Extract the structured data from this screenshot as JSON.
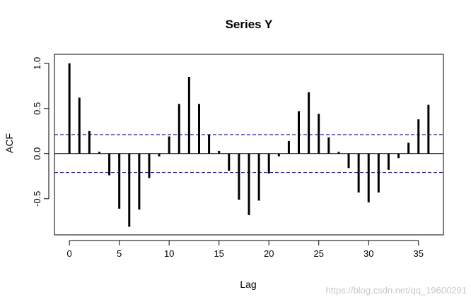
{
  "chart_data": {
    "type": "bar",
    "title": "Series  Y",
    "xlabel": "Lag",
    "ylabel": "ACF",
    "xlim": [
      -1.5,
      37.5
    ],
    "ylim": [
      -0.9,
      1.1
    ],
    "x_ticks": [
      0,
      5,
      10,
      15,
      20,
      25,
      30,
      35
    ],
    "x_tick_labels": [
      "0",
      "5",
      "10",
      "15",
      "20",
      "25",
      "30",
      "35"
    ],
    "y_ticks": [
      -0.5,
      0.0,
      0.5,
      1.0
    ],
    "y_tick_labels": [
      "-0.5",
      "0.0",
      "0.5",
      "1.0"
    ],
    "confidence_bounds": [
      0.21,
      -0.21
    ],
    "confidence_color": "#0000cc",
    "bar_color": "#000000",
    "x": [
      0,
      1,
      2,
      3,
      4,
      5,
      6,
      7,
      8,
      9,
      10,
      11,
      12,
      13,
      14,
      15,
      16,
      17,
      18,
      19,
      20,
      21,
      22,
      23,
      24,
      25,
      26,
      27,
      28,
      29,
      30,
      31,
      32,
      33,
      34,
      35,
      36
    ],
    "values": [
      1.0,
      0.62,
      0.25,
      0.02,
      -0.24,
      -0.61,
      -0.81,
      -0.62,
      -0.27,
      -0.03,
      0.19,
      0.55,
      0.85,
      0.55,
      0.21,
      0.03,
      -0.19,
      -0.51,
      -0.68,
      -0.52,
      -0.22,
      -0.03,
      0.14,
      0.47,
      0.68,
      0.44,
      0.18,
      0.02,
      -0.16,
      -0.43,
      -0.54,
      -0.43,
      -0.18,
      -0.05,
      0.12,
      0.38,
      0.54
    ]
  },
  "watermark": "https://blog.csdn.net/qq_19600291"
}
